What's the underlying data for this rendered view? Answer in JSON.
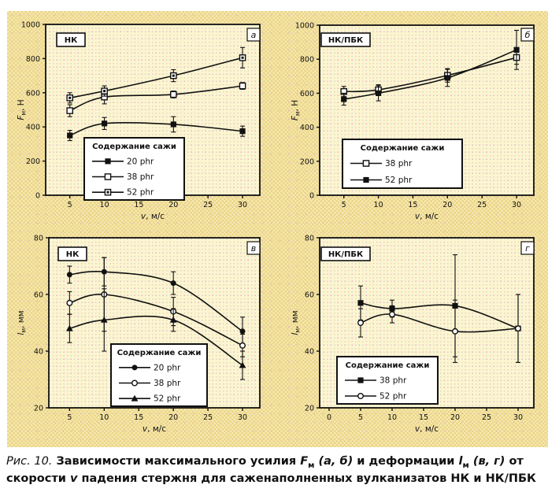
{
  "figure": {
    "colors": {
      "band": "#f6e8ae",
      "band_check": "#ead588",
      "plot_bg": "#fcf5d0",
      "ink": "#111111"
    },
    "caption": {
      "segments": [
        {
          "t": "Рис. 10.",
          "s": "i"
        },
        {
          "t": " Зависимости максимального усилия ",
          "s": "b"
        },
        {
          "t": "F",
          "s": "bi"
        },
        {
          "t": "м",
          "s": "bsub"
        },
        {
          "t": " (а, б)",
          "s": "bi"
        },
        {
          "t": " и деформации ",
          "s": "b"
        },
        {
          "t": "l",
          "s": "bi"
        },
        {
          "t": "м",
          "s": "bsub"
        },
        {
          "t": " (в, г)",
          "s": "bi"
        },
        {
          "t": " от скорости ",
          "s": "b"
        },
        {
          "t": "v",
          "s": "bi"
        },
        {
          "t": " падения стержня для саженаполненных вулканизатов НК и НК/ПБК",
          "s": "b"
        }
      ]
    },
    "chart_data": [
      {
        "type": "line",
        "panel_label": "а",
        "sample_label": "НК",
        "legend_title": "Содержание сажи",
        "xlabel_parts": [
          {
            "t": "v",
            "s": "i"
          },
          {
            "t": ", м/с",
            "s": ""
          }
        ],
        "ylabel_parts": [
          {
            "t": "F",
            "s": "i"
          },
          {
            "t": "м",
            "s": "sub"
          },
          {
            "t": ", Н",
            "s": ""
          }
        ],
        "xlim": [
          1.5,
          32.5
        ],
        "ylim": [
          0,
          1000
        ],
        "xticks": [
          5,
          10,
          15,
          20,
          25,
          30
        ],
        "yticks": [
          0,
          200,
          400,
          600,
          800,
          1000
        ],
        "series": [
          {
            "name": "20 phr",
            "marker": "filled-square",
            "x": [
              5,
              10,
              20,
              30
            ],
            "y": [
              350,
              420,
              415,
              375
            ],
            "err": [
              30,
              35,
              45,
              30
            ]
          },
          {
            "name": "38 phr",
            "marker": "open-square",
            "x": [
              5,
              10,
              20,
              30
            ],
            "y": [
              495,
              575,
              590,
              640
            ],
            "err": [
              35,
              40,
              20,
              20
            ]
          },
          {
            "name": "52 phr",
            "marker": "dot-square",
            "x": [
              5,
              10,
              20,
              30
            ],
            "y": [
              570,
              610,
              700,
              805
            ],
            "err": [
              30,
              30,
              35,
              60
            ]
          }
        ]
      },
      {
        "type": "line",
        "panel_label": "б",
        "sample_label": "НК/ПБК",
        "legend_title": "Содержание сажи",
        "xlabel_parts": [
          {
            "t": "v",
            "s": "i"
          },
          {
            "t": ", м/с",
            "s": ""
          }
        ],
        "ylabel_parts": [
          {
            "t": "F",
            "s": "i"
          },
          {
            "t": "м",
            "s": "sub"
          },
          {
            "t": ", Н",
            "s": ""
          }
        ],
        "xlim": [
          1.5,
          32.5
        ],
        "ylim": [
          0,
          1000
        ],
        "xticks": [
          5,
          10,
          15,
          20,
          25,
          30
        ],
        "yticks": [
          0,
          200,
          400,
          600,
          800,
          1000
        ],
        "series": [
          {
            "name": "38 phr",
            "marker": "open-square",
            "x": [
              5,
              10,
              20,
              30
            ],
            "y": [
              610,
              620,
              705,
              810
            ],
            "err": [
              30,
              30,
              40,
              40
            ]
          },
          {
            "name": "52 phr",
            "marker": "filled-square",
            "x": [
              5,
              10,
              20,
              30
            ],
            "y": [
              565,
              600,
              690,
              855
            ],
            "err": [
              35,
              45,
              50,
              115
            ]
          }
        ]
      },
      {
        "type": "line",
        "panel_label": "в",
        "sample_label": "НК",
        "legend_title": "Содержание сажи",
        "xlabel_parts": [
          {
            "t": "v",
            "s": "i"
          },
          {
            "t": ", м/с",
            "s": ""
          }
        ],
        "ylabel_parts": [
          {
            "t": "l",
            "s": "i"
          },
          {
            "t": "м",
            "s": "sub"
          },
          {
            "t": ", мм",
            "s": ""
          }
        ],
        "xlim": [
          2,
          32.5
        ],
        "ylim": [
          20,
          80
        ],
        "xticks": [
          5,
          10,
          15,
          20,
          25,
          30
        ],
        "yticks": [
          20,
          40,
          60,
          80
        ],
        "series": [
          {
            "name": "20 phr",
            "marker": "filled-circle",
            "x": [
              5,
              10,
              20,
              30
            ],
            "y": [
              67,
              68,
              64,
              47
            ],
            "err": [
              3,
              5,
              4,
              5
            ]
          },
          {
            "name": "38 phr",
            "marker": "open-circle",
            "x": [
              5,
              10,
              20,
              30
            ],
            "y": [
              57,
              60,
              54,
              42
            ],
            "err": [
              4,
              13,
              5,
              4
            ]
          },
          {
            "name": "52 phr",
            "marker": "filled-triangle",
            "x": [
              5,
              10,
              20,
              30
            ],
            "y": [
              48,
              51,
              51,
              35
            ],
            "err": [
              5,
              11,
              4,
              5
            ]
          }
        ]
      },
      {
        "type": "line",
        "panel_label": "г",
        "sample_label": "НК/ПБК",
        "legend_title": "Содержание сажи",
        "xlabel_parts": [
          {
            "t": "v",
            "s": "i"
          },
          {
            "t": ", м/с",
            "s": ""
          }
        ],
        "ylabel_parts": [
          {
            "t": "l",
            "s": "i"
          },
          {
            "t": "м",
            "s": "sub"
          },
          {
            "t": ", мм",
            "s": ""
          }
        ],
        "xlim": [
          -1.5,
          32.5
        ],
        "ylim": [
          20,
          80
        ],
        "xticks": [
          0,
          5,
          10,
          15,
          20,
          25,
          30
        ],
        "yticks": [
          20,
          40,
          60,
          80
        ],
        "series": [
          {
            "name": "38 phr",
            "marker": "filled-square",
            "x": [
              5,
              10,
              20,
              30
            ],
            "y": [
              57,
              55,
              56,
              48
            ],
            "err": [
              6,
              3,
              18,
              12
            ]
          },
          {
            "name": "52 phr",
            "marker": "open-circle",
            "x": [
              5,
              10,
              20,
              30
            ],
            "y": [
              50,
              53,
              47,
              48
            ],
            "err": [
              5,
              3,
              11,
              12
            ]
          }
        ]
      }
    ]
  }
}
